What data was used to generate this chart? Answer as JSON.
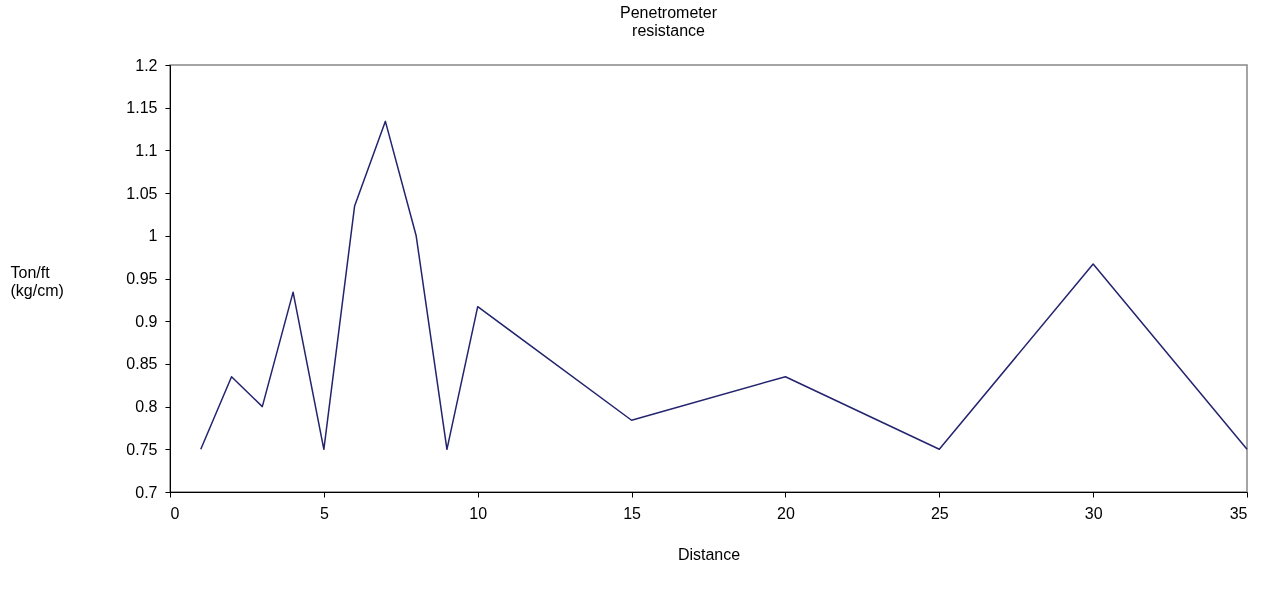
{
  "chart_data": {
    "type": "line",
    "title": "Penetrometer\nresistance",
    "xlabel": "Distance",
    "ylabel": "Ton/ft\n(kg/cm)",
    "x": [
      1,
      2,
      3,
      4,
      5,
      6,
      7,
      8,
      9,
      10,
      15,
      20,
      25,
      30,
      35
    ],
    "series": [
      {
        "color": "#23236e",
        "values": [
          0.75,
          0.835,
          0.8,
          0.934,
          0.75,
          1.035,
          1.134,
          1.0,
          0.75,
          0.917,
          0.784,
          0.835,
          0.75,
          0.967,
          0.75
        ]
      }
    ],
    "xlim": [
      0,
      35
    ],
    "xticks": [
      0,
      5,
      10,
      15,
      20,
      25,
      30,
      35
    ],
    "ylim": [
      0.7,
      1.2
    ],
    "yticks": [
      0.7,
      0.75,
      0.8,
      0.85,
      0.9,
      0.95,
      1,
      1.05,
      1.1,
      1.15,
      1.2
    ],
    "grid": false,
    "marker": "none",
    "line_style": "solid"
  }
}
